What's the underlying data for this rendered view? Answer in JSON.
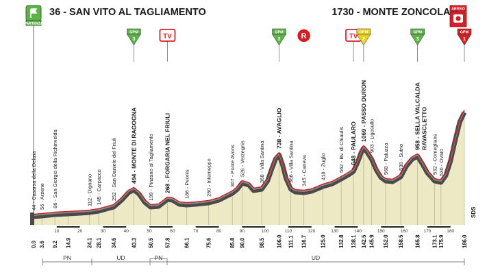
{
  "start": {
    "altitude_name": "36 - SAN VITO AL TAGLIAMENTO",
    "badge_label": "PARTENZA",
    "icon": "start-flag-icon"
  },
  "finish": {
    "altitude_name": "1730 - MONTE ZONCOLAN",
    "badge_label": "ARRIVO",
    "icon": "finish-camera-icon"
  },
  "markers": [
    {
      "type": "gpm",
      "category": "3",
      "km": 43.3
    },
    {
      "type": "tv",
      "label": "TV",
      "km": 57.8
    },
    {
      "type": "gpm",
      "category": "3",
      "km": 106.0
    },
    {
      "type": "r",
      "label": "R",
      "km": 116.7
    },
    {
      "type": "tv",
      "label": "TV",
      "km": 138.1
    },
    {
      "type": "gpm",
      "category": "2",
      "km": 142.5
    },
    {
      "type": "gpm",
      "category": "3",
      "km": 165.8
    },
    {
      "type": "gpm",
      "category": "1",
      "km": 186.0
    }
  ],
  "gpm_label": "GPM",
  "waypoints": [
    {
      "km": 0.0,
      "label": "44 - Casarsa della Delizia",
      "bold": false
    },
    {
      "km": 3.6,
      "label": "56 - Arzene",
      "bold": false
    },
    {
      "km": 9.2,
      "label": "86 - San Giorgio della Richinvelda",
      "bold": false
    },
    {
      "km": 14.9,
      "label": "",
      "bold": false
    },
    {
      "km": 24.1,
      "label": "112 - Dignano",
      "bold": false
    },
    {
      "km": 28.1,
      "label": "145 - Carpacco",
      "bold": false
    },
    {
      "km": 34.6,
      "label": "252 - San Daniele del Friuli",
      "bold": false
    },
    {
      "km": 43.3,
      "label": "494 - MONTE DI RAGOGNA",
      "bold": true
    },
    {
      "km": 50.5,
      "label": "199 - Pinzano al Tagliamento",
      "bold": false
    },
    {
      "km": 57.8,
      "label": "268 - FORGARIA NEL FRIULI",
      "bold": true
    },
    {
      "km": 66.1,
      "label": "186 - Peonis",
      "bold": false
    },
    {
      "km": 75.6,
      "label": "250 - Interneppo",
      "bold": false
    },
    {
      "km": 85.8,
      "label": "307 - Ponte Avons",
      "bold": false
    },
    {
      "km": 90.0,
      "label": "526 - Verzegnis",
      "bold": false
    },
    {
      "km": 98.5,
      "label": "368 - Villa Santina",
      "bold": false
    },
    {
      "km": 106.0,
      "label": "738 - AVAGLIO",
      "bold": true
    },
    {
      "km": 111.1,
      "label": "366 - Villa Santina",
      "bold": false
    },
    {
      "km": 116.7,
      "label": "345 - Caneva",
      "bold": false
    },
    {
      "km": 125.0,
      "label": "418 - Zuglio",
      "bold": false
    },
    {
      "km": 132.8,
      "label": "562 - Bv. di Chiaulis",
      "bold": false
    },
    {
      "km": 138.1,
      "label": "648 - PAULARO",
      "bold": true
    },
    {
      "km": 142.5,
      "label": "1069 - PASSO DURON",
      "bold": true
    },
    {
      "km": 145.9,
      "label": "903 - Ligosullo",
      "bold": false
    },
    {
      "km": 152.0,
      "label": "568 - Paluzza",
      "bold": false
    },
    {
      "km": 158.5,
      "label": "538 - Sutrio",
      "bold": false
    },
    {
      "km": 165.8,
      "label": "958 - SELLA VALCALDA RAVASCLETTO",
      "bold": true
    },
    {
      "km": 173.1,
      "label": "532 - Comeglians",
      "bold": false
    },
    {
      "km": 175.9,
      "label": "530 - Ovaro",
      "bold": false
    },
    {
      "km": 186.0,
      "label": "",
      "bold": false
    }
  ],
  "km_labels": [
    "0.0",
    "3.6",
    "9.2",
    "14.9",
    "24.1",
    "28.1",
    "34.6",
    "43.3",
    "50.5",
    "57.8",
    "66.1",
    "75.6",
    "85.8",
    "90.0",
    "98.5",
    "106.0",
    "111.1",
    "116.7",
    "125.0",
    "132.8",
    "138.1",
    "142.5",
    "145.9",
    "152.0",
    "158.5",
    "165.8",
    "173.1",
    "175.9",
    "186.0"
  ],
  "axis_ticks": [
    "10",
    "20",
    "30",
    "40",
    "50",
    "60",
    "70",
    "80",
    "90",
    "100",
    "110",
    "120",
    "130",
    "140",
    "150",
    "160",
    "170",
    "180"
  ],
  "regions": [
    {
      "label": "PN"
    },
    {
      "label": "UD"
    },
    {
      "label": "PN"
    },
    {
      "label": "UD"
    }
  ],
  "logo_text": "SDS",
  "colors": {
    "profile_fill": "#ece9c4",
    "road_dark": "#4a4a4a",
    "road_red": "#cc2127",
    "gpm_green": "#5fb24a",
    "gpm_yellow": "#e9cf1e",
    "gpm_red": "#d51f26",
    "tv_red": "#d51f26",
    "start_green": "#5fb24a"
  }
}
